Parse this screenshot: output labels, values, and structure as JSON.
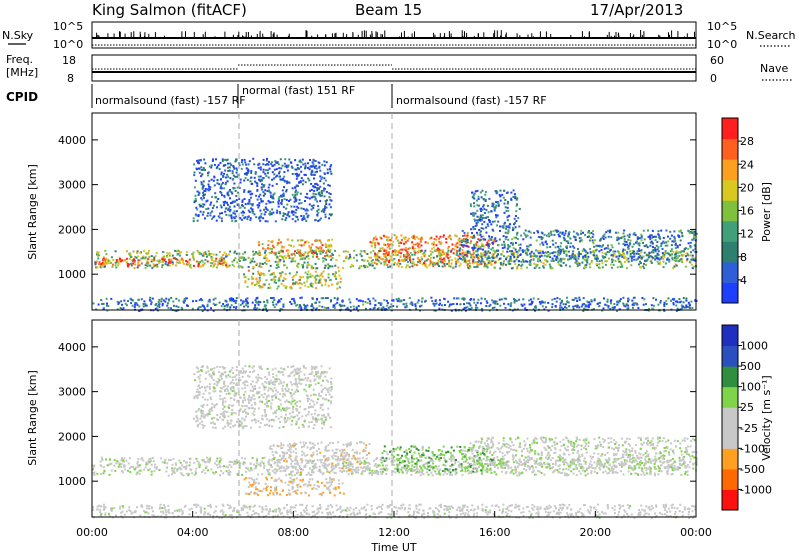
{
  "header": {
    "station": "King Salmon (fitACF)",
    "beam": "Beam 15",
    "date": "17/Apr/2013"
  },
  "top_panels": {
    "nsky_label": "N.Sky",
    "nsky_ticks": [
      "10^5",
      "10^0"
    ],
    "nsearch_label": "N.Search",
    "nsearch_ticks": [
      "10^5",
      "10^0"
    ],
    "freq_label_line1": "Freq.",
    "freq_label_line2": "[MHz]",
    "freq_ticks": [
      "18",
      "8"
    ],
    "nave_label": "Nave",
    "nave_ticks": [
      "60",
      "0"
    ],
    "cpid_label": "CPID",
    "cpid_segments": [
      {
        "label": "normalsound (fast) -157 RF"
      },
      {
        "label": "normal (fast) 151 RF"
      },
      {
        "label": "normalsound (fast) -157 RF"
      }
    ]
  },
  "colors": {
    "power": [
      "#1f3fff",
      "#2f5fd8",
      "#2e7f6e",
      "#3fa07a",
      "#7fc03f",
      "#d8c81f",
      "#ff9f1f",
      "#ff5f1f",
      "#ff1f1f"
    ],
    "velocity": [
      "#ff1010",
      "#ff6a00",
      "#ffa020",
      "#c8c8c8",
      "#c8c8c8",
      "#7fd44a",
      "#2f8f3f",
      "#2a4fbf",
      "#1f2fbf"
    ]
  },
  "chart_data": [
    {
      "type": "heatmap",
      "panel": "power",
      "ylabel": "Slant Range [km]",
      "yticks": [
        1000,
        2000,
        3000,
        4000
      ],
      "ylim": [
        200,
        4600
      ],
      "xlim_hours": [
        0,
        24
      ],
      "colorbar_label": "Power [dB]",
      "colorbar_ticks": [
        "4",
        "8",
        "12",
        "16",
        "20",
        "24",
        "28"
      ],
      "colorbar_range": [
        0,
        32
      ],
      "scatter_regions": [
        {
          "t0": 0.0,
          "t1": 24.0,
          "r0": 1150,
          "r1": 1550,
          "level": 0.45
        },
        {
          "t0": 0.0,
          "t1": 5.5,
          "r0": 1200,
          "r1": 1380,
          "level": 0.8
        },
        {
          "t0": 6.0,
          "t1": 10.0,
          "r0": 700,
          "r1": 1100,
          "level": 0.55
        },
        {
          "t0": 6.5,
          "t1": 9.5,
          "r0": 1400,
          "r1": 1800,
          "level": 0.7
        },
        {
          "t0": 11.0,
          "t1": 16.0,
          "r0": 1200,
          "r1": 1900,
          "level": 0.75
        },
        {
          "t0": 4.0,
          "t1": 9.5,
          "r0": 2200,
          "r1": 3600,
          "level": 0.15
        },
        {
          "t0": 14.5,
          "t1": 24.0,
          "r0": 1300,
          "r1": 2000,
          "level": 0.25
        },
        {
          "t0": 15.0,
          "t1": 17.0,
          "r0": 2000,
          "r1": 2900,
          "level": 0.2
        },
        {
          "t0": 0.0,
          "t1": 24.0,
          "r0": 200,
          "r1": 500,
          "level": 0.2
        }
      ]
    },
    {
      "type": "heatmap",
      "panel": "velocity",
      "ylabel": "Slant Range [km]",
      "yticks": [
        1000,
        2000,
        3000,
        4000
      ],
      "ylim": [
        200,
        4600
      ],
      "xlim_hours": [
        0,
        24
      ],
      "xticks": [
        "00:00",
        "04:00",
        "08:00",
        "12:00",
        "16:00",
        "20:00",
        "00:00"
      ],
      "xlabel": "Time UT",
      "colorbar_label": "Velocity [m s⁻¹]",
      "colorbar_ticks": [
        "-1000",
        "-500",
        "-100",
        "-25",
        "25",
        "100",
        "500",
        "1000"
      ],
      "colorbar_range": [
        -1200,
        1200
      ],
      "scatter_regions": [
        {
          "t0": 0.0,
          "t1": 24.0,
          "r0": 1150,
          "r1": 1550,
          "vel": 0
        },
        {
          "t0": 6.0,
          "t1": 10.0,
          "r0": 700,
          "r1": 1100,
          "vel": -300
        },
        {
          "t0": 7.0,
          "t1": 11.0,
          "r0": 1200,
          "r1": 1900,
          "vel": -200
        },
        {
          "t0": 11.5,
          "t1": 16.0,
          "r0": 1200,
          "r1": 1800,
          "vel": 300
        },
        {
          "t0": 4.0,
          "t1": 9.5,
          "r0": 2200,
          "r1": 3600,
          "vel": -50
        },
        {
          "t0": 15.0,
          "t1": 24.0,
          "r0": 1300,
          "r1": 2000,
          "vel": 0
        },
        {
          "t0": 0.0,
          "t1": 24.0,
          "r0": 200,
          "r1": 500,
          "vel": -100
        }
      ]
    }
  ]
}
